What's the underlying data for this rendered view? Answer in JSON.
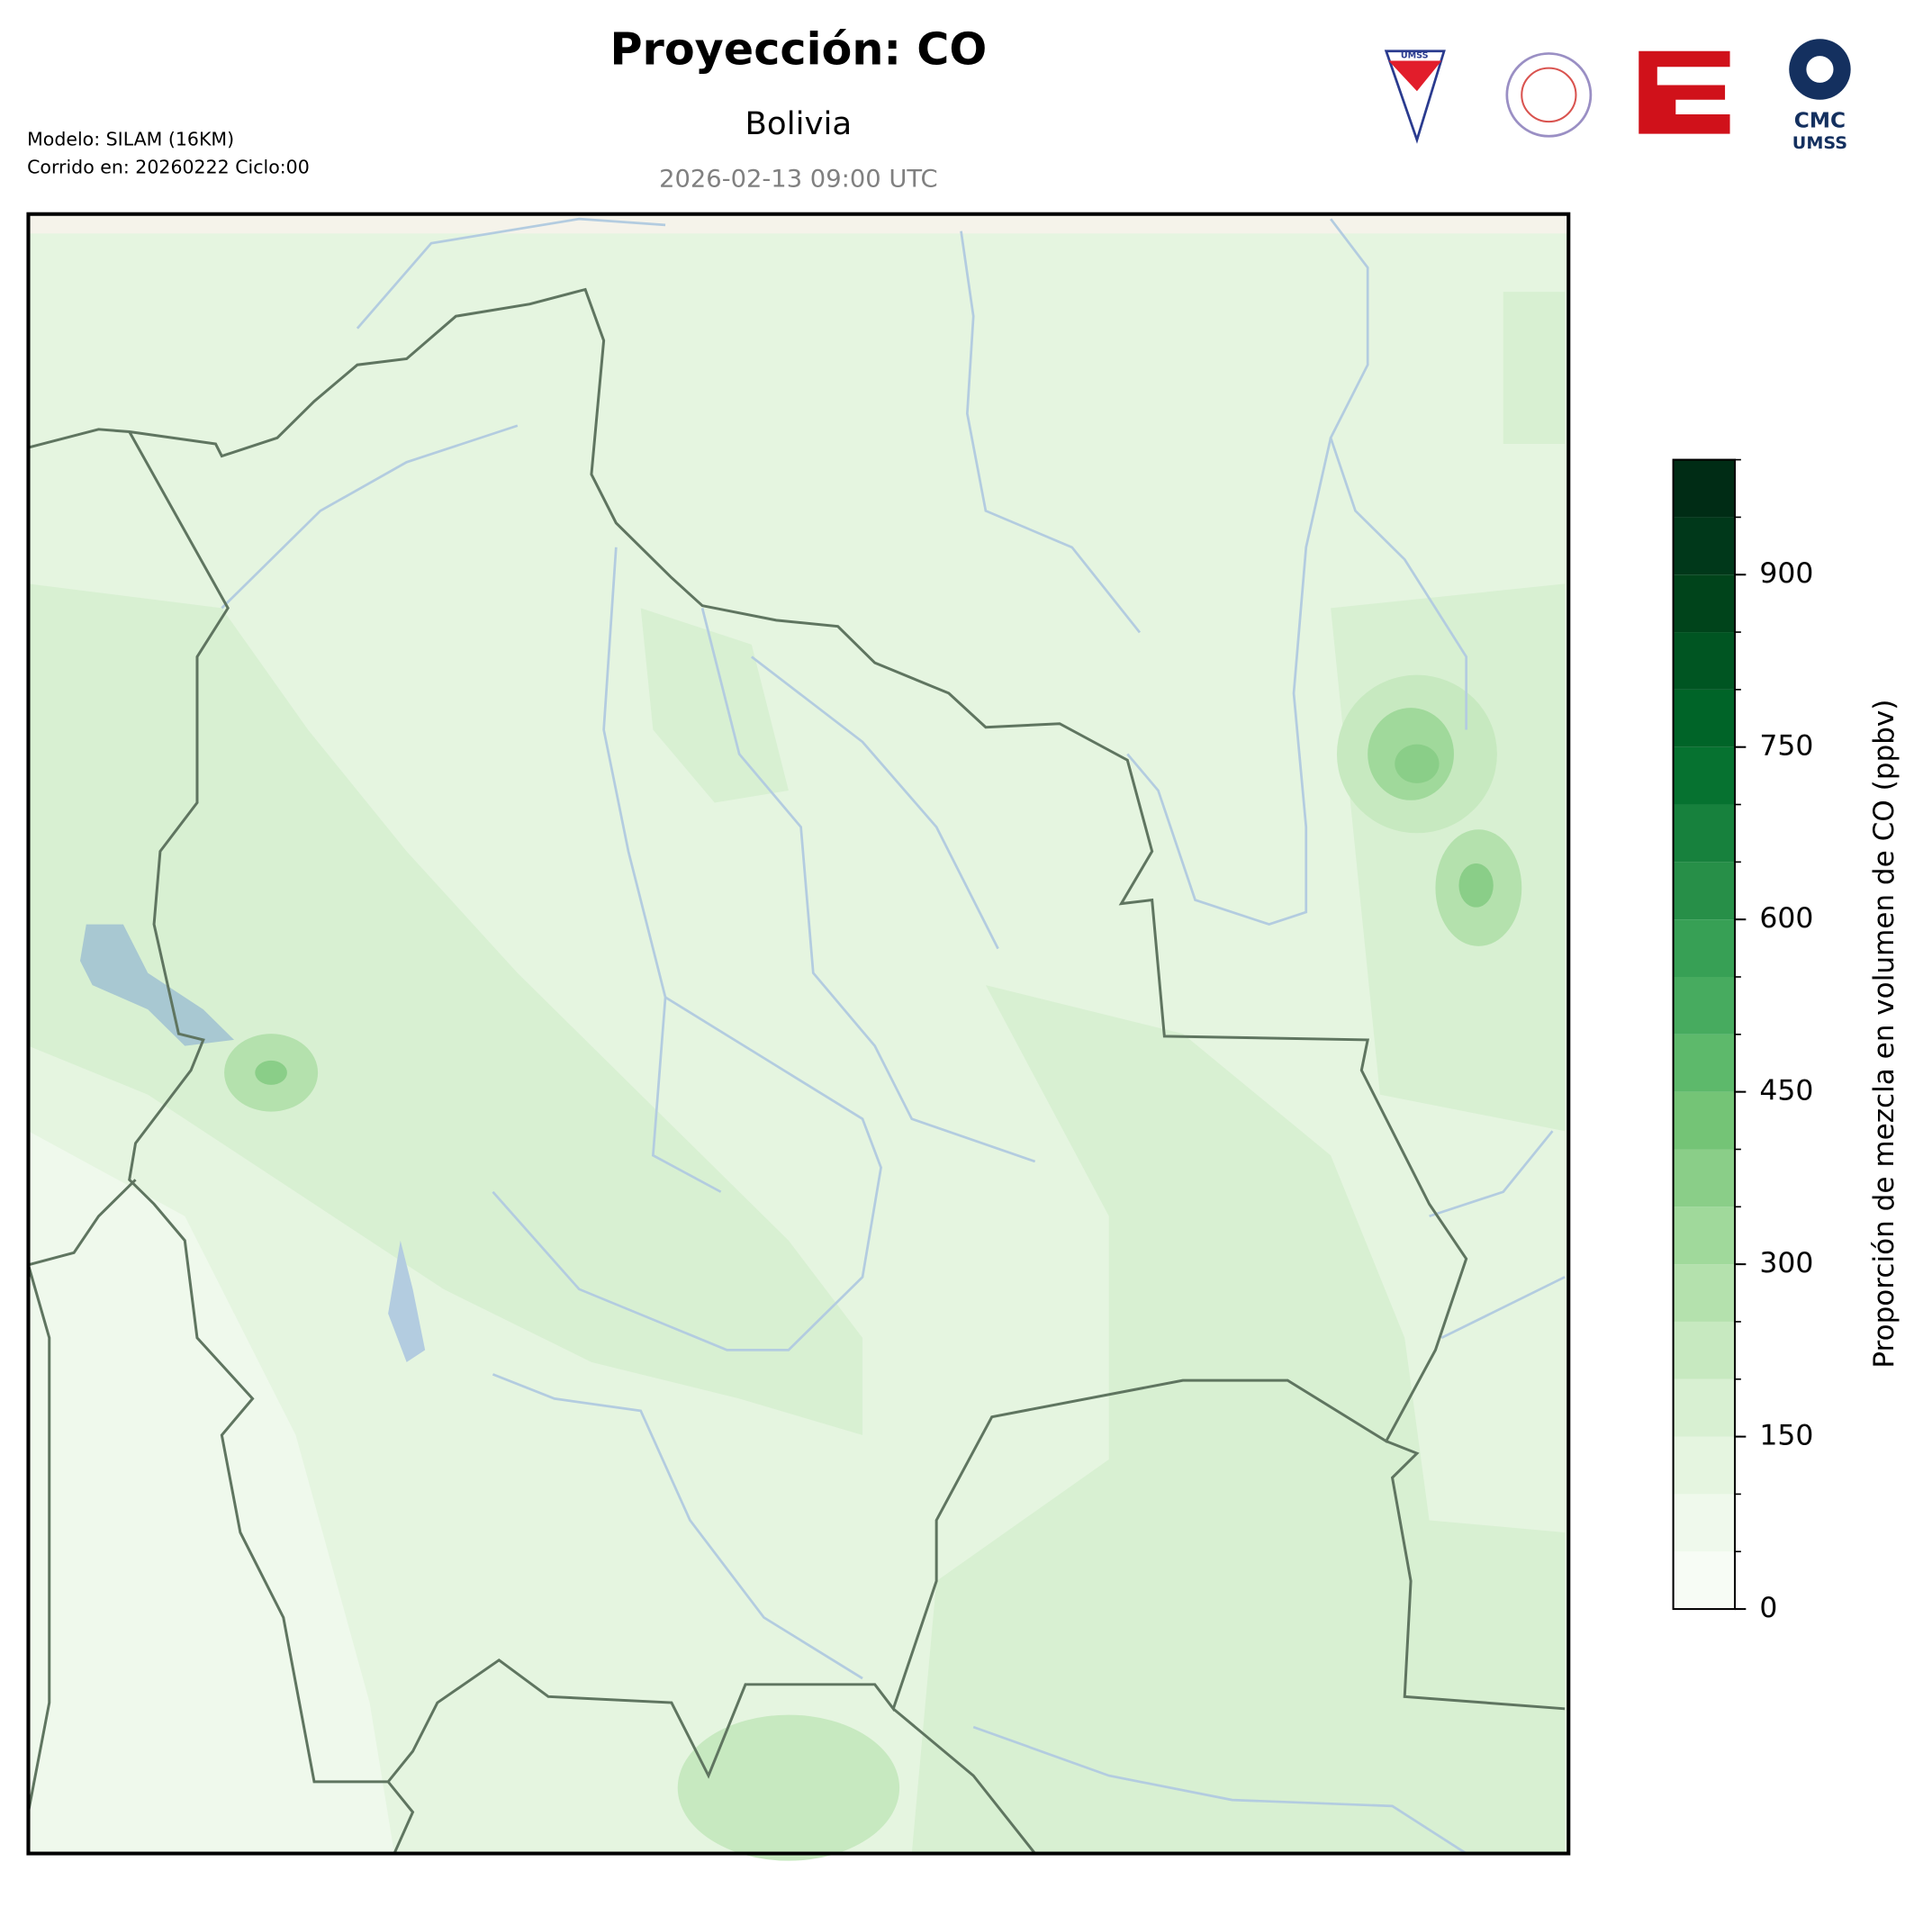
{
  "header": {
    "title": "Proyección: CO",
    "subtitle": "Bolivia",
    "date": "2026-02-13 09:00 UTC",
    "model": "Modelo: SILAM (16KM)",
    "run": "Corrido en: 20260222 Ciclo:00"
  },
  "logos": {
    "shield": "UMSS",
    "cmc": "CMC",
    "cmc_sub": "UMSS"
  },
  "colorbar": {
    "label": "Proporción de mezcla en volumen de CO (ppbv)",
    "lim": [
      0,
      1000
    ],
    "ticks": [
      0,
      150,
      300,
      450,
      600,
      750,
      900
    ],
    "levels": [
      0,
      50,
      100,
      150,
      200,
      250,
      300,
      350,
      400,
      450,
      500,
      550,
      600,
      650,
      700,
      750,
      800,
      850,
      900,
      950,
      1000
    ],
    "colors": [
      "#f7fcf5",
      "#eff9ec",
      "#e5f5e0",
      "#d8f0d2",
      "#c7e9c0",
      "#b4e1ad",
      "#a0d99b",
      "#8ace88",
      "#74c476",
      "#5db96b",
      "#47ab5f",
      "#37a055",
      "#278f48",
      "#17813d",
      "#067230",
      "#006428",
      "#005522",
      "#00441b",
      "#00381a",
      "#002c15"
    ]
  }
}
